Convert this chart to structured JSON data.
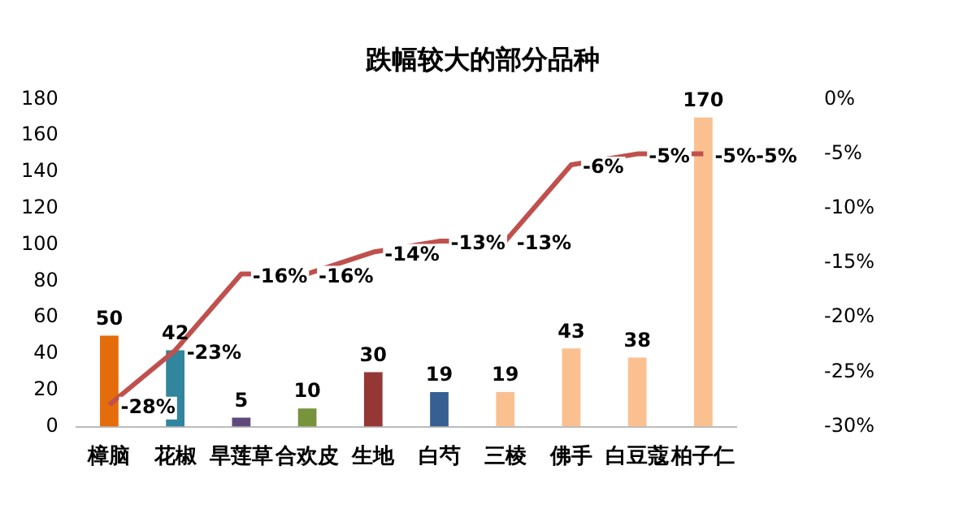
{
  "chart_data": {
    "type": "bar",
    "title": "跌幅较大的部分品种",
    "categories": [
      "樟脑",
      "花椒",
      "旱莲草",
      "合欢皮",
      "生地",
      "白芍",
      "三棱",
      "佛手",
      "白豆蔻",
      "柏子仁"
    ],
    "series": [
      {
        "colors": [
          "#e46c0a",
          "#31859c",
          "#604a7b",
          "#77933c",
          "#953735",
          "#376092",
          "#fac090",
          "#fac090",
          "#fac090",
          "#fac090"
        ],
        "values": [
          50,
          42,
          5,
          10,
          30,
          19,
          19,
          43,
          38,
          170
        ],
        "value_labels": [
          "50",
          "42",
          "5",
          "10",
          "30",
          "19",
          "19",
          "43",
          "38",
          "170"
        ]
      },
      {
        "type": "line",
        "axis": "y2",
        "color": "#c0504d",
        "values": [
          -28,
          -23,
          -16,
          -16,
          -14,
          -13,
          -13,
          -6,
          -5,
          -5
        ],
        "value_labels": [
          "-28%",
          "-23%",
          "-16%",
          "-16%",
          "-14%",
          "-13%",
          "-13%",
          "-6%",
          "-5%",
          "-5%-5%"
        ]
      }
    ],
    "ylim": [
      0,
      180
    ],
    "yticks": [
      0,
      20,
      40,
      60,
      80,
      100,
      120,
      140,
      160,
      180
    ],
    "y2lim": [
      -30,
      0
    ],
    "y2ticks": [
      {
        "value": -30,
        "label": "-30%"
      },
      {
        "value": -25,
        "label": "-25%"
      },
      {
        "value": -20,
        "label": "-20%"
      },
      {
        "value": -15,
        "label": "-15%"
      },
      {
        "value": -10,
        "label": "-10%"
      },
      {
        "value": -5,
        "label": "-5%"
      },
      {
        "value": 0,
        "label": "0%"
      }
    ],
    "marker": "none",
    "grid": false,
    "legend": false
  }
}
